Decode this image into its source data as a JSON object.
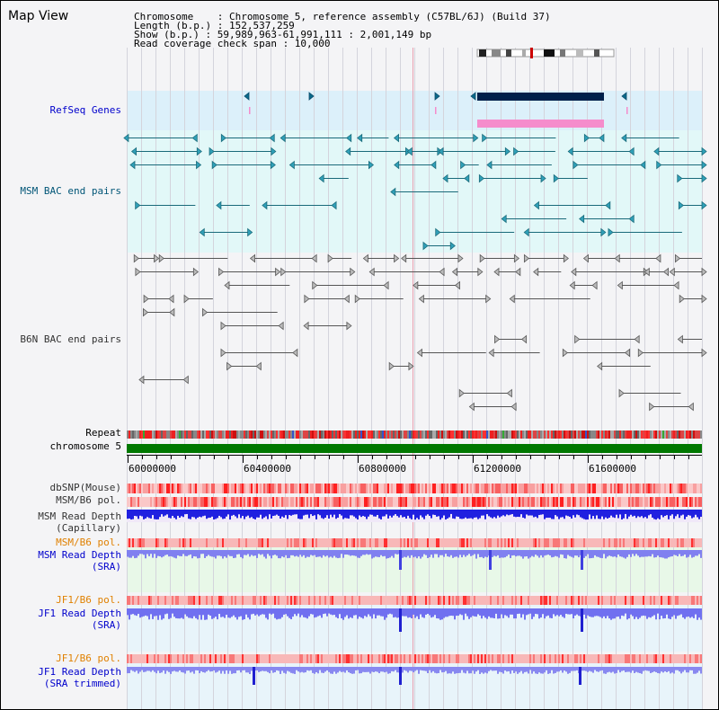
{
  "view_title": "Map View",
  "info": {
    "chromosome": "Chromosome    : Chromosome 5, reference assembly (C57BL/6J) (Build 37)",
    "length": "Length (b.p.) : 152,537,259",
    "show": "Show (b.p.) : 59,989,963-61,991,111 : 2,001,149 bp",
    "span": "Read coverage check span : 10,000"
  },
  "tracks": {
    "refseq": "RefSeq Genes",
    "msm_bac": "MSM BAC end pairs",
    "b6n_bac": "B6N BAC end pairs",
    "repeat": "Repeat",
    "chrom": "chromosome 5",
    "dbsnp": "dbSNP(Mouse)",
    "msm_b6_pol_a": "MSM/B6 pol.",
    "msm_depth_cap_1": "MSM Read Depth",
    "msm_depth_cap_2": "(Capillary)",
    "msm_b6_pol_b": "MSM/B6 pol.",
    "msm_depth_sra_1": "MSM Read Depth",
    "msm_depth_sra_2": "(SRA)",
    "jf1_b6_pol_a": "JF1/B6 pol.",
    "jf1_depth_sra_1": "JF1 Read Depth",
    "jf1_depth_sra_2": "(SRA)",
    "jf1_b6_pol_b": "JF1/B6 pol.",
    "jf1_depth_trim_1": "JF1 Read Depth",
    "jf1_depth_trim_2": "(SRA trimmed)"
  },
  "axis": {
    "ticks": [
      "60000000",
      "60400000",
      "60800000",
      "61200000",
      "61600000"
    ]
  },
  "colors": {
    "blue_label": "#0000cc",
    "teal_label": "#005577",
    "orange_label": "#e08000",
    "gray_label": "#333333",
    "refseq_bg": "#dcf0fa",
    "teal_bg": "#e2f8f8",
    "gene_dark": "#00204a",
    "gene_pink": "#f58ccc",
    "chrom_green": "#007800",
    "depth_blue": "#2020e0",
    "depth_light": "#7878f0"
  }
}
